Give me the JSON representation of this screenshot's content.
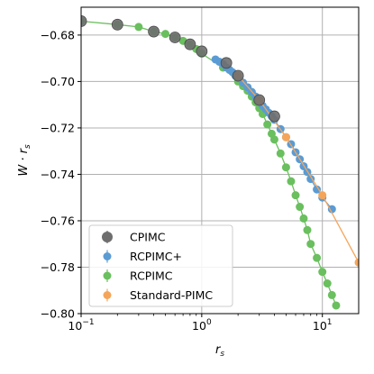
{
  "chart_data": {
    "type": "scatter",
    "x_scale": "log",
    "y_scale": "linear",
    "xlim": [
      0.1,
      20
    ],
    "ylim": [
      -0.8,
      -0.668
    ],
    "xlabel": "r_s",
    "ylabel": "W · r_s",
    "grid": true,
    "legend_position": "lower-left",
    "x_ticks": [
      {
        "value": 0.1,
        "label": "10",
        "exp": "−1"
      },
      {
        "value": 1,
        "label": "10",
        "exp": "0"
      },
      {
        "value": 10,
        "label": "10",
        "exp": "1"
      }
    ],
    "y_ticks": [
      {
        "value": -0.68,
        "label": "−0.68"
      },
      {
        "value": -0.7,
        "label": "−0.70"
      },
      {
        "value": -0.72,
        "label": "−0.72"
      },
      {
        "value": -0.74,
        "label": "−0.74"
      },
      {
        "value": -0.76,
        "label": "−0.76"
      },
      {
        "value": -0.78,
        "label": "−0.78"
      },
      {
        "value": -0.8,
        "label": "−0.80"
      }
    ],
    "series": [
      {
        "name": "RCPIMC",
        "color": "#6abf5e",
        "marker_size": 4.5,
        "line": true,
        "points": [
          [
            0.1,
            -0.674
          ],
          [
            0.2,
            -0.6755
          ],
          [
            0.3,
            -0.6765
          ],
          [
            0.4,
            -0.6785
          ],
          [
            0.5,
            -0.6795
          ],
          [
            0.6,
            -0.681
          ],
          [
            0.7,
            -0.6825
          ],
          [
            0.8,
            -0.684
          ],
          [
            0.9,
            -0.686
          ],
          [
            1.0,
            -0.688
          ],
          [
            1.5,
            -0.694
          ],
          [
            2.0,
            -0.7
          ],
          [
            2.2,
            -0.702
          ],
          [
            2.4,
            -0.704
          ],
          [
            2.6,
            -0.7065
          ],
          [
            2.8,
            -0.709
          ],
          [
            3.0,
            -0.7115
          ],
          [
            3.2,
            -0.714
          ],
          [
            3.5,
            -0.7185
          ],
          [
            3.8,
            -0.7225
          ],
          [
            4.0,
            -0.725
          ],
          [
            4.5,
            -0.731
          ],
          [
            5.0,
            -0.737
          ],
          [
            5.5,
            -0.743
          ],
          [
            6.0,
            -0.749
          ],
          [
            6.5,
            -0.754
          ],
          [
            7.0,
            -0.759
          ],
          [
            7.5,
            -0.764
          ],
          [
            8.0,
            -0.77
          ],
          [
            9.0,
            -0.776
          ],
          [
            10.0,
            -0.782
          ],
          [
            11.0,
            -0.787
          ],
          [
            12.0,
            -0.792
          ],
          [
            13.0,
            -0.7965
          ]
        ]
      },
      {
        "name": "RCPIMC+",
        "color": "#5a9bd4",
        "marker_size": 4.5,
        "line": true,
        "points": [
          [
            1.3,
            -0.6905
          ],
          [
            1.4,
            -0.6915
          ],
          [
            1.5,
            -0.6925
          ],
          [
            1.6,
            -0.694
          ],
          [
            1.7,
            -0.695
          ],
          [
            1.8,
            -0.696
          ],
          [
            1.9,
            -0.6975
          ],
          [
            2.0,
            -0.6985
          ],
          [
            2.2,
            -0.7005
          ],
          [
            2.4,
            -0.7025
          ],
          [
            2.6,
            -0.7045
          ],
          [
            2.8,
            -0.7065
          ],
          [
            3.0,
            -0.7085
          ],
          [
            3.2,
            -0.7105
          ],
          [
            3.4,
            -0.712
          ],
          [
            3.6,
            -0.7135
          ],
          [
            3.8,
            -0.715
          ],
          [
            4.0,
            -0.7165
          ],
          [
            4.5,
            -0.7205
          ],
          [
            5.0,
            -0.724
          ],
          [
            5.5,
            -0.727
          ],
          [
            6.0,
            -0.7305
          ],
          [
            6.5,
            -0.7335
          ],
          [
            7.0,
            -0.7365
          ],
          [
            7.5,
            -0.739
          ],
          [
            8.0,
            -0.742
          ],
          [
            9.0,
            -0.7465
          ],
          [
            10.0,
            -0.75
          ],
          [
            12.0,
            -0.755
          ]
        ]
      },
      {
        "name": "Standard-PIMC",
        "color": "#f5a55a",
        "marker_size": 4.5,
        "line": true,
        "points": [
          [
            2.0,
            -0.6975
          ],
          [
            3.0,
            -0.708
          ],
          [
            5.0,
            -0.724
          ],
          [
            10.0,
            -0.749
          ],
          [
            20.0,
            -0.778
          ]
        ]
      },
      {
        "name": "CPIMC",
        "color": "#6e6e6e",
        "marker_size": 6,
        "line": false,
        "points": [
          [
            0.1,
            -0.674
          ],
          [
            0.2,
            -0.6755
          ],
          [
            0.4,
            -0.6785
          ],
          [
            0.6,
            -0.681
          ],
          [
            0.8,
            -0.684
          ],
          [
            1.0,
            -0.687
          ],
          [
            1.6,
            -0.692
          ],
          [
            2.0,
            -0.6975
          ],
          [
            3.0,
            -0.708
          ],
          [
            4.0,
            -0.715
          ]
        ]
      }
    ],
    "legend_entries": [
      "CPIMC",
      "RCPIMC+",
      "RCPIMC",
      "Standard-PIMC"
    ]
  }
}
